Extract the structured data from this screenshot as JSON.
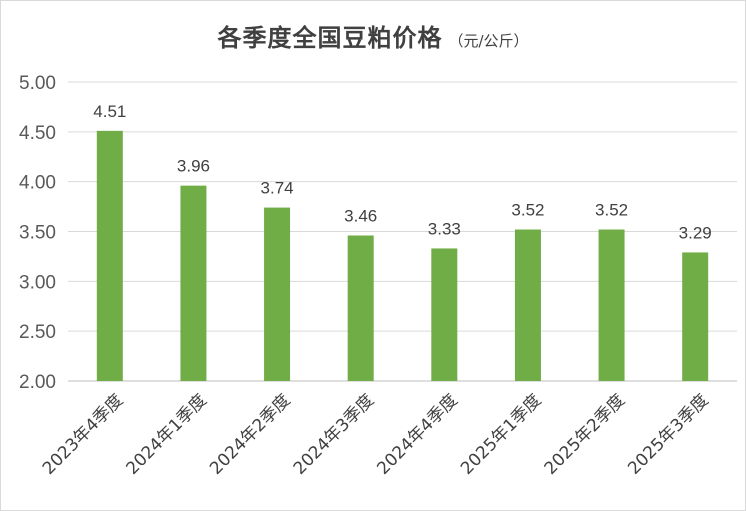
{
  "chart_data": {
    "type": "bar",
    "title": "各季度全国豆粕价格",
    "unit": "（元/公斤）",
    "categories": [
      "2023年4季度",
      "2024年1季度",
      "2024年2季度",
      "2024年3季度",
      "2024年4季度",
      "2025年1季度",
      "2025年2季度",
      "2025年3季度"
    ],
    "values": [
      4.51,
      3.96,
      3.74,
      3.46,
      3.33,
      3.52,
      3.52,
      3.29
    ],
    "data_labels": [
      "4.51",
      "3.96",
      "3.74",
      "3.46",
      "3.33",
      "3.52",
      "3.52",
      "3.29"
    ],
    "ylim": [
      2.0,
      5.0
    ],
    "yticks": [
      "2.00",
      "2.50",
      "3.00",
      "3.50",
      "4.00",
      "4.50",
      "5.00"
    ],
    "grid": true,
    "legend": "none",
    "bar_color": "#70ad47",
    "grid_color": "#d9d9d9",
    "text_color": "#404040"
  }
}
